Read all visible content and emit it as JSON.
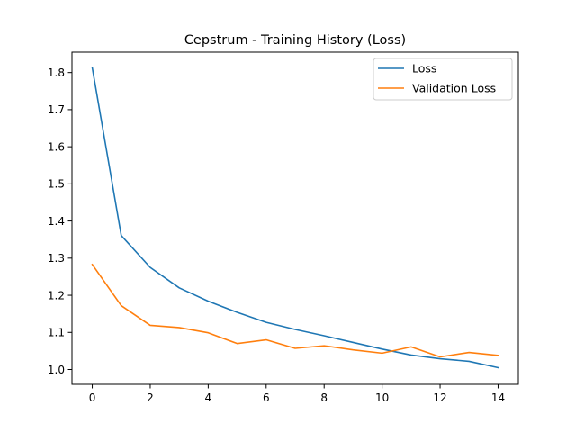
{
  "chart_data": {
    "type": "line",
    "title": "Cepstrum - Training History (Loss)",
    "xlabel": "",
    "ylabel": "",
    "x": [
      0,
      1,
      2,
      3,
      4,
      5,
      6,
      7,
      8,
      9,
      10,
      11,
      12,
      13,
      14
    ],
    "xlim": [
      -0.7,
      14.7
    ],
    "ylim": [
      0.96,
      1.855
    ],
    "xticks": [
      0,
      2,
      4,
      6,
      8,
      10,
      12,
      14
    ],
    "yticks": [
      1.0,
      1.1,
      1.2,
      1.3,
      1.4,
      1.5,
      1.6,
      1.7,
      1.8
    ],
    "grid": false,
    "legend_position": "top-right",
    "series": [
      {
        "name": "Loss",
        "color": "#1f77b4",
        "values": [
          1.813,
          1.361,
          1.275,
          1.22,
          1.184,
          1.154,
          1.127,
          1.108,
          1.091,
          1.073,
          1.055,
          1.039,
          1.029,
          1.022,
          1.005
        ]
      },
      {
        "name": "Validation Loss",
        "color": "#ff7f0e",
        "values": [
          1.283,
          1.172,
          1.119,
          1.113,
          1.099,
          1.07,
          1.08,
          1.057,
          1.064,
          1.053,
          1.044,
          1.061,
          1.034,
          1.046,
          1.038
        ]
      }
    ]
  }
}
